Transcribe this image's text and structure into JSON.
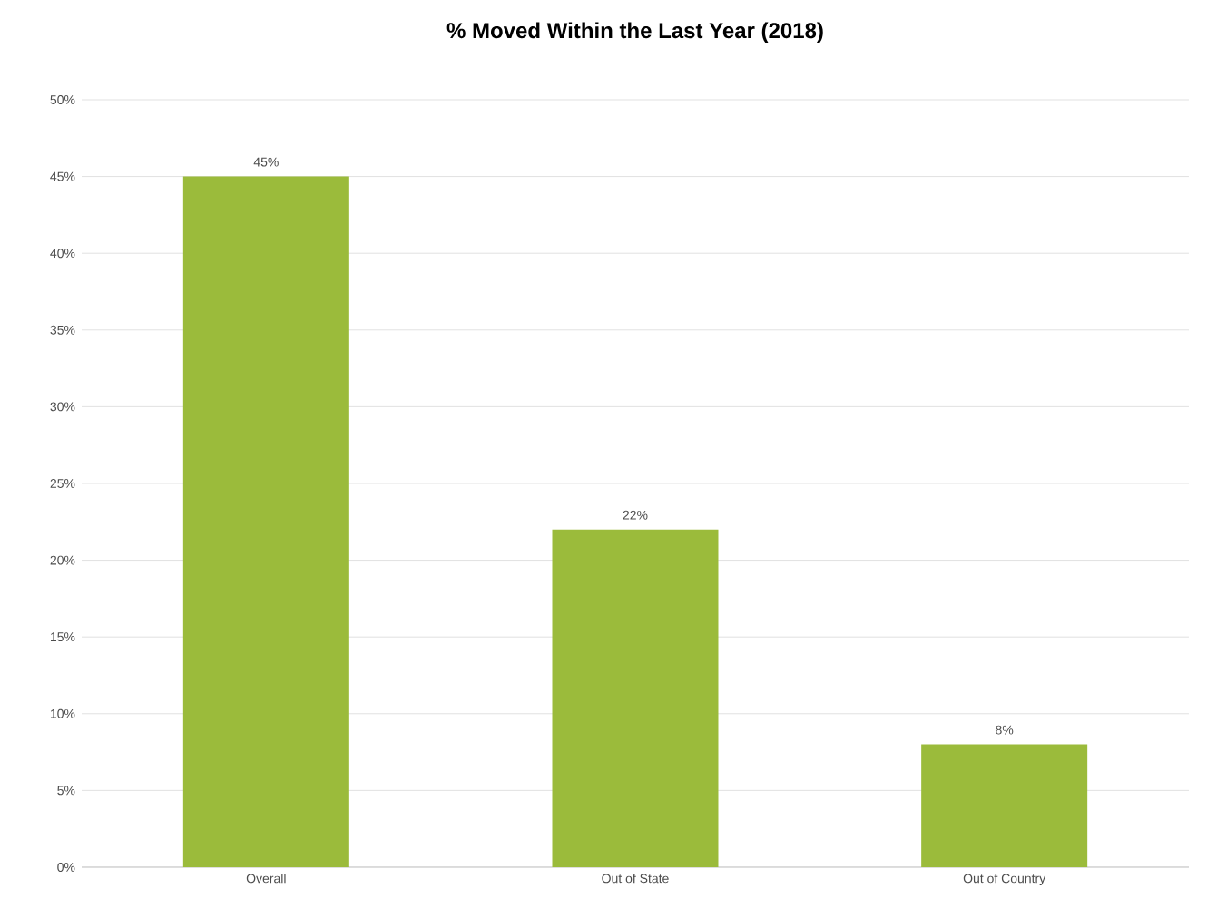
{
  "chart_data": {
    "type": "bar",
    "title": "% Moved Within the Last Year (2018)",
    "categories": [
      "Overall",
      "Out of State",
      "Out of Country"
    ],
    "values": [
      45,
      22,
      8
    ],
    "value_labels": [
      "45%",
      "22%",
      "8%"
    ],
    "color": "#9bbb3b",
    "ylim": [
      0,
      50
    ],
    "yticks": [
      {
        "value": 0,
        "label": "0%"
      },
      {
        "value": 5,
        "label": "5%"
      },
      {
        "value": 10,
        "label": "10%"
      },
      {
        "value": 15,
        "label": "15%"
      },
      {
        "value": 20,
        "label": "20%"
      },
      {
        "value": 25,
        "label": "25%"
      },
      {
        "value": 30,
        "label": "30%"
      },
      {
        "value": 35,
        "label": "35%"
      },
      {
        "value": 40,
        "label": "40%"
      },
      {
        "value": 45,
        "label": "45%"
      },
      {
        "value": 50,
        "label": "50%"
      }
    ],
    "grid": "y"
  }
}
